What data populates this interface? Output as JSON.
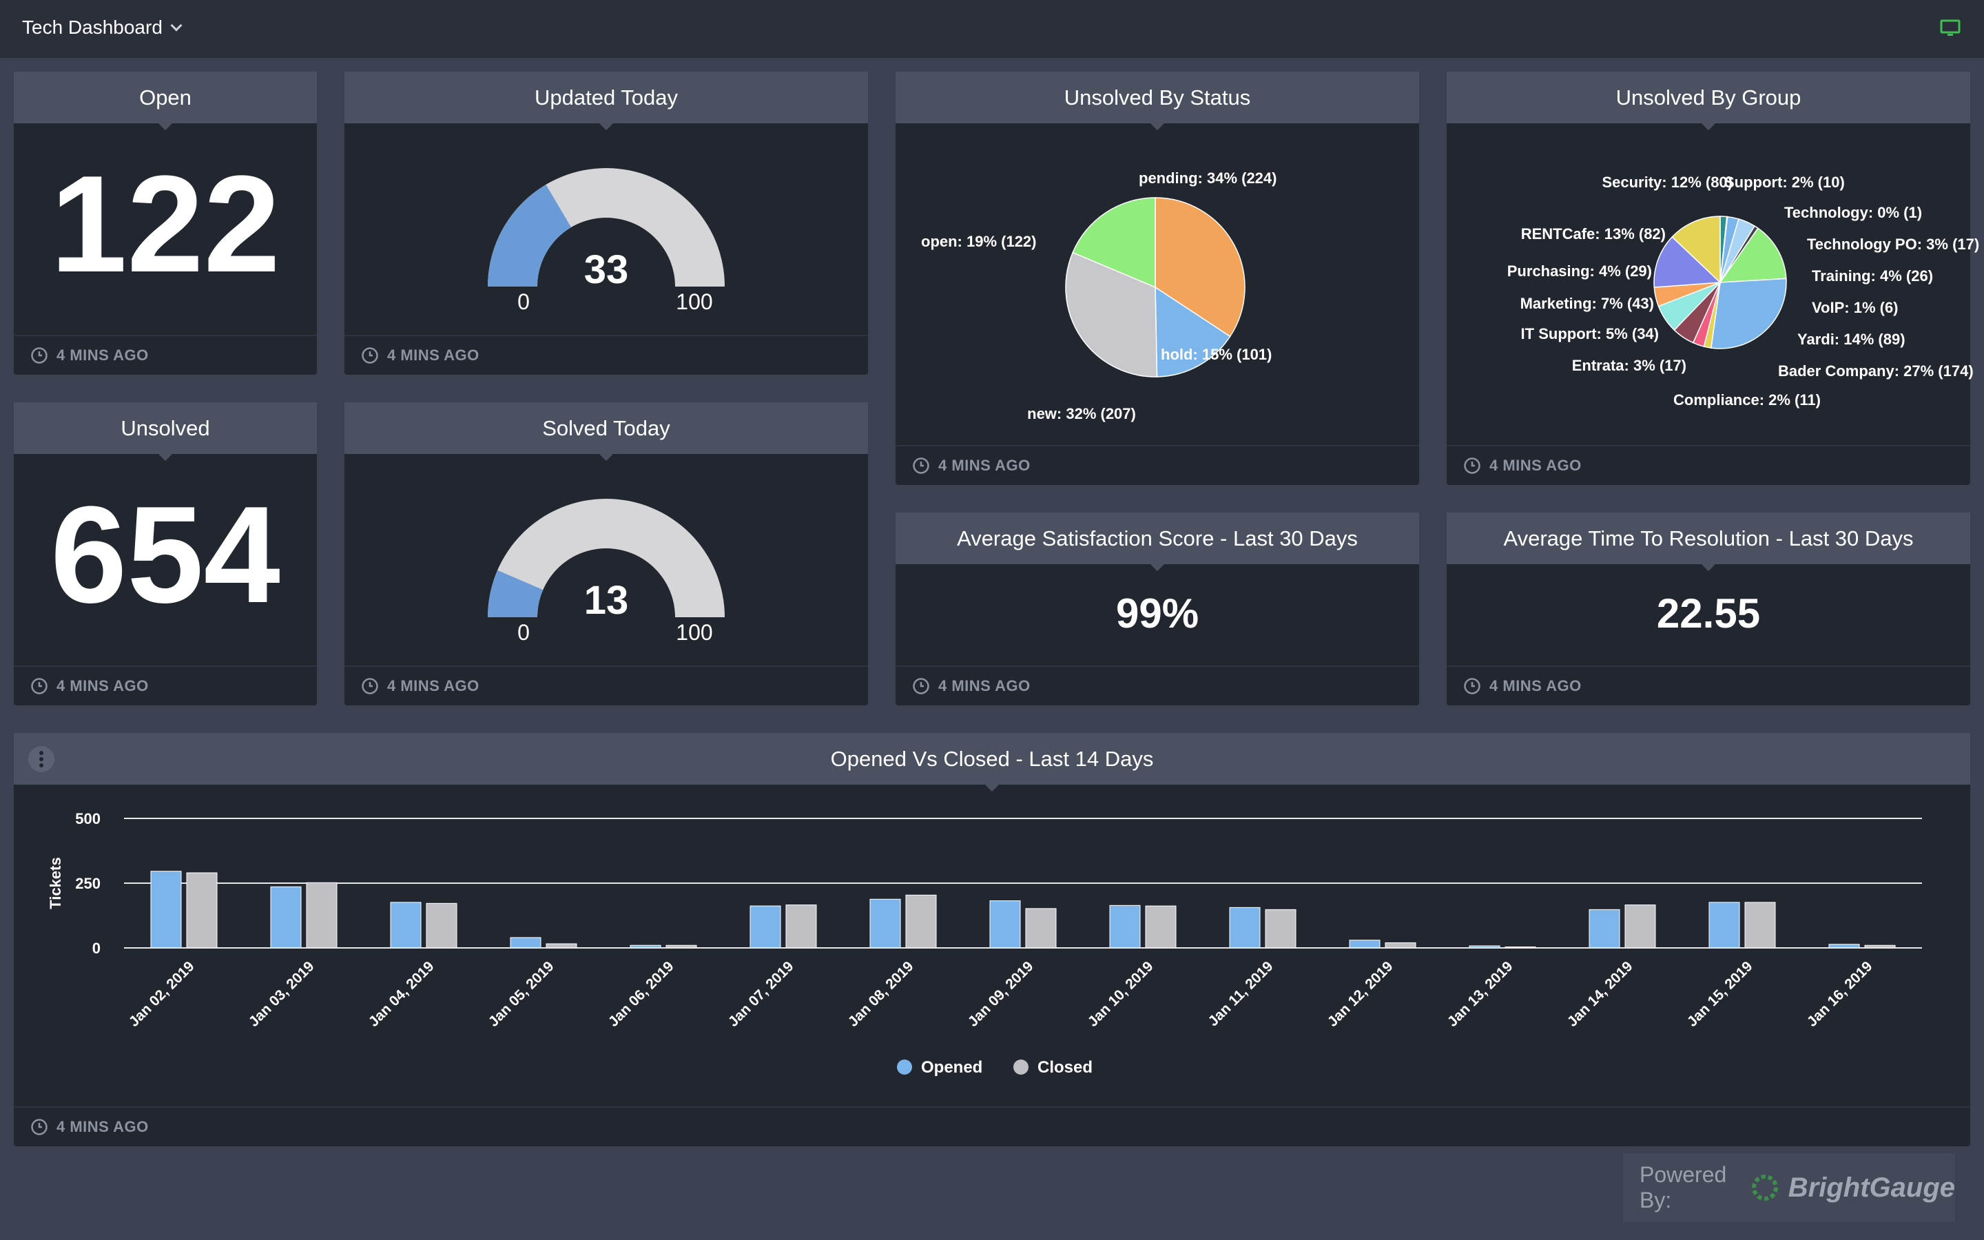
{
  "header": {
    "title": "Tech Dashboard"
  },
  "footer_text": "4 MINS AGO",
  "widgets": {
    "open": {
      "title": "Open",
      "value": "122"
    },
    "unsolved": {
      "title": "Unsolved",
      "value": "654"
    },
    "updated_today": {
      "title": "Updated Today",
      "value": "33",
      "min": "0",
      "max": "100",
      "fraction": 0.33
    },
    "solved_today": {
      "title": "Solved Today",
      "value": "13",
      "min": "0",
      "max": "100",
      "fraction": 0.13
    },
    "satisfaction": {
      "title": "Average Satisfaction Score - Last 30 Days",
      "value": "99%"
    },
    "resolution": {
      "title": "Average Time To Resolution - Last 30 Days",
      "value": "22.55"
    }
  },
  "chart_data": [
    {
      "type": "pie",
      "title": "Unsolved By Status",
      "slices": [
        {
          "label": "pending: 34% (224)",
          "value": 224,
          "color": "#f4a35a"
        },
        {
          "label": "hold: 15% (101)",
          "value": 101,
          "color": "#7cb5ec"
        },
        {
          "label": "new: 32% (207)",
          "value": 207,
          "color": "#c8c8cc"
        },
        {
          "label": "open: 19% (122)",
          "value": 122,
          "color": "#90ed7d"
        }
      ]
    },
    {
      "type": "pie",
      "title": "Unsolved By Group",
      "slices": [
        {
          "label": "Support: 2% (10)",
          "value": 10,
          "color": "#2b908f"
        },
        {
          "label": "Technology: 0% (1)",
          "value": 1,
          "color": "#f15c80"
        },
        {
          "label": "Technology PO: 3% (17)",
          "value": 17,
          "color": "#7cb5ec"
        },
        {
          "label": "Training: 4% (26)",
          "value": 26,
          "color": "#aad4f5"
        },
        {
          "label": "VoIP: 1% (6)",
          "value": 6,
          "color": "#434348"
        },
        {
          "label": "Yardi: 14% (89)",
          "value": 89,
          "color": "#90ed7d"
        },
        {
          "label": "Bader Company: 27% (174)",
          "value": 174,
          "color": "#7cb5ec"
        },
        {
          "label": "Compliance: 2% (11)",
          "value": 11,
          "color": "#e4d354"
        },
        {
          "label": "Entrata: 3% (17)",
          "value": 17,
          "color": "#f15c80"
        },
        {
          "label": "IT Support: 5% (34)",
          "value": 34,
          "color": "#8d4653"
        },
        {
          "label": "Marketing: 7% (43)",
          "value": 43,
          "color": "#91e8e1"
        },
        {
          "label": "Purchasing: 4% (29)",
          "value": 29,
          "color": "#f7a35c"
        },
        {
          "label": "RENTCafe: 13% (82)",
          "value": 82,
          "color": "#8085e9"
        },
        {
          "label": "Security: 12% (80)",
          "value": 80,
          "color": "#e4d354"
        }
      ]
    },
    {
      "type": "bar",
      "title": "Opened Vs Closed - Last 14 Days",
      "ylabel": "Tickets",
      "ylim": [
        0,
        500
      ],
      "yticks": [
        "0",
        "250",
        "500"
      ],
      "grid": true,
      "legend": "bottom",
      "categories": [
        "Jan 02, 2019",
        "Jan 03, 2019",
        "Jan 04, 2019",
        "Jan 05, 2019",
        "Jan 06, 2019",
        "Jan 07, 2019",
        "Jan 08, 2019",
        "Jan 09, 2019",
        "Jan 10, 2019",
        "Jan 11, 2019",
        "Jan 12, 2019",
        "Jan 13, 2019",
        "Jan 14, 2019",
        "Jan 15, 2019",
        "Jan 16, 2019"
      ],
      "series": [
        {
          "name": "Opened",
          "color": "#7cb5ec",
          "values": [
            296,
            236,
            176,
            40,
            10,
            162,
            188,
            182,
            164,
            156,
            30,
            8,
            148,
            176,
            14
          ]
        },
        {
          "name": "Closed",
          "color": "#c0c0c4",
          "values": [
            290,
            252,
            172,
            16,
            10,
            166,
            204,
            152,
            162,
            148,
            20,
            4,
            166,
            176,
            10
          ]
        }
      ]
    }
  ],
  "powered": {
    "label": "Powered By:",
    "brand": "BrightGauge"
  }
}
